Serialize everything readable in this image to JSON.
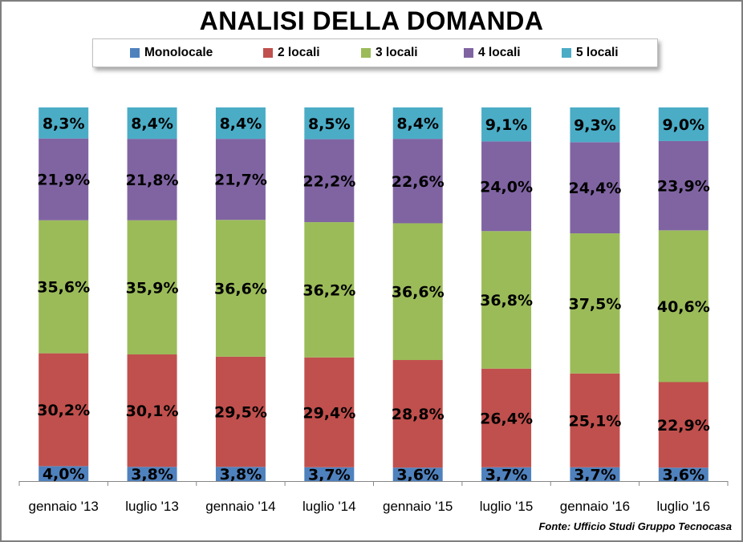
{
  "chart_data": {
    "type": "bar",
    "stacked": true,
    "title": "ANALISI DELLA DOMANDA",
    "categories": [
      "gennaio '13",
      "luglio '13",
      "gennaio '14",
      "luglio '14",
      "gennaio '15",
      "luglio '15",
      "gennaio '16",
      "luglio '16"
    ],
    "series": [
      {
        "name": "Monolocale",
        "color": "#4f81bd",
        "values": [
          4.0,
          3.8,
          3.8,
          3.7,
          3.6,
          3.7,
          3.7,
          3.6
        ],
        "labels": [
          "4,0%",
          "3,8%",
          "3,8%",
          "3,7%",
          "3,6%",
          "3,7%",
          "3,7%",
          "3,6%"
        ]
      },
      {
        "name": "2 locali",
        "color": "#c0504d",
        "values": [
          30.2,
          30.1,
          29.5,
          29.4,
          28.8,
          26.4,
          25.1,
          22.9
        ],
        "labels": [
          "30,2%",
          "30,1%",
          "29,5%",
          "29,4%",
          "28,8%",
          "26,4%",
          "25,1%",
          "22,9%"
        ]
      },
      {
        "name": "3 locali",
        "color": "#9bbb59",
        "values": [
          35.6,
          35.9,
          36.6,
          36.2,
          36.6,
          36.8,
          37.5,
          40.6
        ],
        "labels": [
          "35,6%",
          "35,9%",
          "36,6%",
          "36,2%",
          "36,6%",
          "36,8%",
          "37,5%",
          "40,6%"
        ]
      },
      {
        "name": "4 locali",
        "color": "#8064a2",
        "values": [
          21.9,
          21.8,
          21.7,
          22.2,
          22.6,
          24.0,
          24.4,
          23.9
        ],
        "labels": [
          "21,9%",
          "21,8%",
          "21,7%",
          "22,2%",
          "22,6%",
          "24,0%",
          "24,4%",
          "23,9%"
        ]
      },
      {
        "name": "5 locali",
        "color": "#4bacc6",
        "values": [
          8.3,
          8.4,
          8.4,
          8.5,
          8.4,
          9.1,
          9.3,
          9.0
        ],
        "labels": [
          "8,3%",
          "8,4%",
          "8,4%",
          "8,5%",
          "8,4%",
          "9,1%",
          "9,3%",
          "9,0%"
        ]
      }
    ],
    "ylim": [
      0,
      100
    ],
    "legend": "top",
    "grid": false,
    "source": "Fonte: Ufficio Studi Gruppo Tecnocasa"
  }
}
